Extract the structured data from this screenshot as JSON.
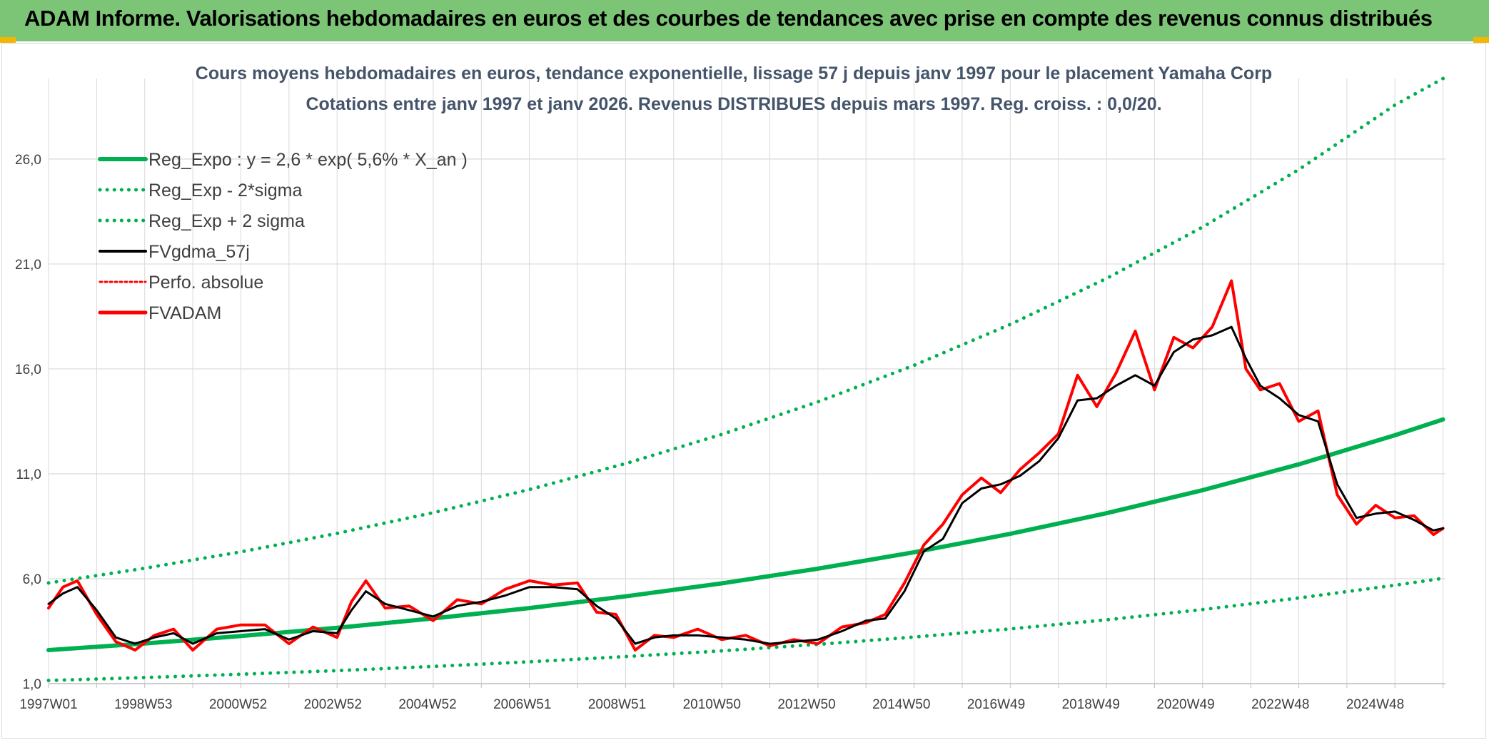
{
  "banner": {
    "text": "ADAM Informe. Valorisations hebdomadaires en euros et des courbes de tendances avec prise en compte des revenus connus distribués"
  },
  "colors": {
    "banner_bg": "#7cc576",
    "reg": "#00b050",
    "fvgdma": "#000000",
    "fvadam": "#ff0000",
    "grid": "#d9d9d9"
  },
  "chart_data": {
    "type": "line",
    "title": "Cours moyens hebdomadaires en euros, tendance exponentielle, lissage 57 j depuis janv 1997 pour le placement Yamaha Corp",
    "subtitle": "Cotations entre janv 1997 et janv 2026. Revenus DISTRIBUES depuis mars 1997. Reg. croiss. : 0,0/20.",
    "x_tick_labels": [
      "1997W01",
      "1998W53",
      "2000W52",
      "2002W52",
      "2004W52",
      "2006W51",
      "2008W51",
      "2010W50",
      "2012W50",
      "2014W50",
      "2016W49",
      "2018W49",
      "2020W49",
      "2022W48",
      "2024W48"
    ],
    "x_range": [
      1997.0,
      2026.05
    ],
    "y_tick_labels": [
      "1,0",
      "6,0",
      "11,0",
      "16,0",
      "21,0",
      "26,0"
    ],
    "y_ticks": [
      1,
      6,
      11,
      16,
      21,
      26
    ],
    "ylim": [
      1,
      29.5
    ],
    "grid": true,
    "legend_position": "top-left",
    "legend": [
      {
        "label": "Reg_Expo : y = 2,6 * exp( 5,6% *  X_an )",
        "style": "solid-green"
      },
      {
        "label": "Reg_Exp - 2*sigma",
        "style": "dotted-green"
      },
      {
        "label": "Reg_Exp + 2 sigma",
        "style": "dotted-green"
      },
      {
        "label": "FVgdma_57j",
        "style": "solid-black"
      },
      {
        "label": "Perfo. absolue",
        "style": "dotted-red"
      },
      {
        "label": "FVADAM",
        "style": "solid-red"
      }
    ],
    "series": [
      {
        "name": "Reg_Expo : y = 2,6 * exp( 5,6% *  X_an )",
        "x": [
          1997.0,
          1999.0,
          2001.0,
          2003.0,
          2005.0,
          2007.0,
          2009.0,
          2011.0,
          2013.0,
          2015.0,
          2017.0,
          2019.0,
          2021.0,
          2023.0,
          2025.0,
          2026.0
        ],
        "values": [
          2.6,
          2.91,
          3.27,
          3.66,
          4.11,
          4.6,
          5.16,
          5.78,
          6.48,
          7.26,
          8.14,
          9.12,
          10.22,
          11.45,
          12.84,
          13.59
        ]
      },
      {
        "name": "Reg_Exp - 2*sigma",
        "x": [
          1997.0,
          1999.0,
          2001.0,
          2003.0,
          2005.0,
          2007.0,
          2009.0,
          2011.0,
          2013.0,
          2015.0,
          2017.0,
          2019.0,
          2021.0,
          2023.0,
          2025.0,
          2026.0
        ],
        "values": [
          1.15,
          1.29,
          1.45,
          1.62,
          1.82,
          2.04,
          2.29,
          2.56,
          2.87,
          3.22,
          3.61,
          4.04,
          4.53,
          5.08,
          5.69,
          6.02
        ]
      },
      {
        "name": "Reg_Exp + 2 sigma",
        "x": [
          1997.0,
          1999.0,
          2001.0,
          2003.0,
          2005.0,
          2007.0,
          2009.0,
          2011.0,
          2013.0,
          2015.0,
          2017.0,
          2019.0,
          2021.0,
          2023.0,
          2025.0,
          2026.0
        ],
        "values": [
          5.8,
          6.5,
          7.28,
          8.16,
          9.15,
          10.25,
          11.49,
          12.88,
          14.43,
          16.17,
          18.12,
          20.31,
          22.76,
          25.5,
          28.58,
          30.26
        ]
      },
      {
        "name": "FVgdma_57j",
        "x": [
          1997.0,
          1997.3,
          1997.6,
          1998.0,
          1998.4,
          1998.8,
          1999.2,
          1999.6,
          2000.0,
          2000.5,
          2001.0,
          2001.5,
          2002.0,
          2002.5,
          2003.0,
          2003.3,
          2003.6,
          2004.0,
          2004.5,
          2005.0,
          2005.5,
          2006.0,
          2006.5,
          2007.0,
          2007.5,
          2008.0,
          2008.4,
          2008.8,
          2009.2,
          2009.6,
          2010.0,
          2010.5,
          2011.0,
          2011.5,
          2012.0,
          2012.5,
          2013.0,
          2013.5,
          2014.0,
          2014.4,
          2014.8,
          2015.2,
          2015.6,
          2016.0,
          2016.4,
          2016.8,
          2017.2,
          2017.6,
          2018.0,
          2018.4,
          2018.8,
          2019.2,
          2019.6,
          2020.0,
          2020.4,
          2020.8,
          2021.2,
          2021.6,
          2021.9,
          2022.2,
          2022.6,
          2023.0,
          2023.4,
          2023.8,
          2024.2,
          2024.6,
          2025.0,
          2025.4,
          2025.8,
          2026.0
        ],
        "values": [
          4.8,
          5.3,
          5.6,
          4.5,
          3.2,
          2.9,
          3.2,
          3.4,
          2.9,
          3.4,
          3.5,
          3.6,
          3.1,
          3.5,
          3.4,
          4.5,
          5.4,
          4.8,
          4.5,
          4.2,
          4.7,
          4.9,
          5.2,
          5.6,
          5.6,
          5.5,
          4.7,
          4.1,
          2.9,
          3.2,
          3.3,
          3.3,
          3.2,
          3.1,
          2.9,
          3.0,
          3.1,
          3.5,
          4.0,
          4.1,
          5.4,
          7.3,
          7.9,
          9.6,
          10.3,
          10.5,
          10.9,
          11.6,
          12.7,
          14.5,
          14.6,
          15.2,
          15.7,
          15.2,
          16.8,
          17.4,
          17.6,
          18.0,
          16.5,
          15.2,
          14.6,
          13.8,
          13.5,
          10.5,
          8.9,
          9.1,
          9.2,
          8.8,
          8.3,
          8.4
        ]
      },
      {
        "name": "FVADAM",
        "x": [
          1997.0,
          1997.3,
          1997.6,
          1998.0,
          1998.4,
          1998.8,
          1999.2,
          1999.6,
          2000.0,
          2000.5,
          2001.0,
          2001.5,
          2002.0,
          2002.5,
          2003.0,
          2003.3,
          2003.6,
          2004.0,
          2004.5,
          2005.0,
          2005.5,
          2006.0,
          2006.5,
          2007.0,
          2007.5,
          2008.0,
          2008.4,
          2008.8,
          2009.2,
          2009.6,
          2010.0,
          2010.5,
          2011.0,
          2011.5,
          2012.0,
          2012.5,
          2013.0,
          2013.5,
          2014.0,
          2014.4,
          2014.8,
          2015.2,
          2015.6,
          2016.0,
          2016.4,
          2016.8,
          2017.2,
          2017.6,
          2018.0,
          2018.4,
          2018.8,
          2019.2,
          2019.6,
          2020.0,
          2020.4,
          2020.8,
          2021.2,
          2021.6,
          2021.9,
          2022.2,
          2022.6,
          2023.0,
          2023.4,
          2023.8,
          2024.2,
          2024.6,
          2025.0,
          2025.4,
          2025.8,
          2026.0
        ],
        "values": [
          4.6,
          5.6,
          5.9,
          4.3,
          3.0,
          2.6,
          3.3,
          3.6,
          2.6,
          3.6,
          3.8,
          3.8,
          2.9,
          3.7,
          3.2,
          4.9,
          5.9,
          4.6,
          4.7,
          4.0,
          5.0,
          4.8,
          5.5,
          5.9,
          5.7,
          5.8,
          4.4,
          4.3,
          2.6,
          3.3,
          3.2,
          3.6,
          3.1,
          3.3,
          2.8,
          3.1,
          2.9,
          3.7,
          3.9,
          4.3,
          5.8,
          7.6,
          8.6,
          10.0,
          10.8,
          10.1,
          11.2,
          12.0,
          12.9,
          15.7,
          14.2,
          15.8,
          17.8,
          15.0,
          17.5,
          17.0,
          18.0,
          20.2,
          16.0,
          15.0,
          15.3,
          13.5,
          14.0,
          10.0,
          8.6,
          9.5,
          8.9,
          9.0,
          8.1,
          8.4
        ]
      }
    ]
  }
}
